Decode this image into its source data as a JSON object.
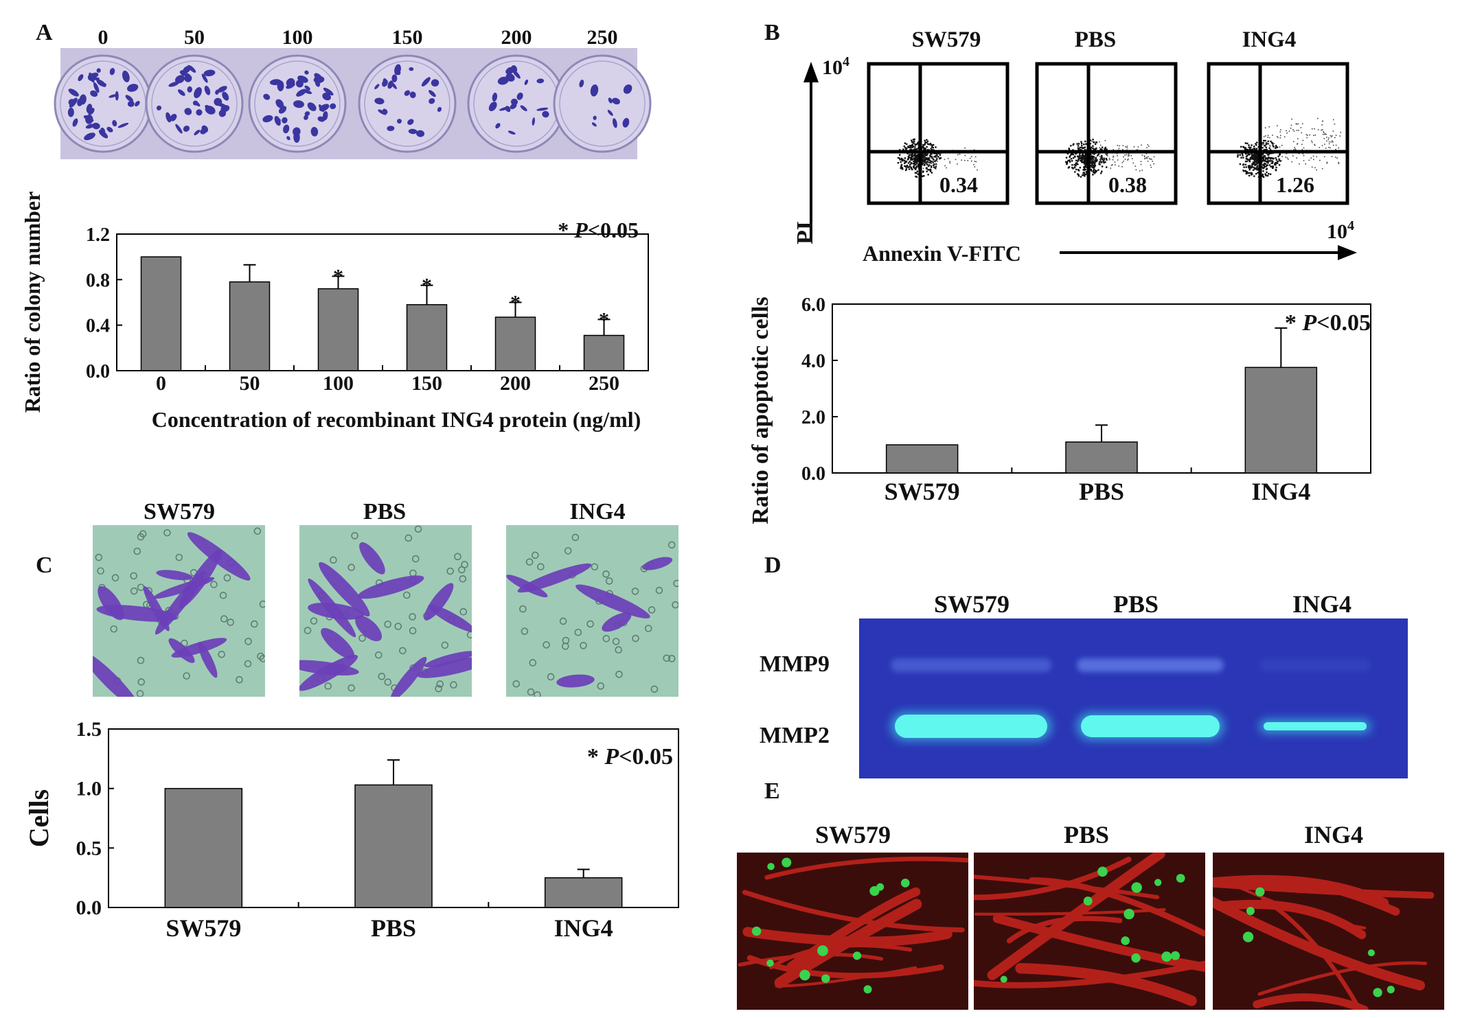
{
  "panels": {
    "A": "A",
    "B": "B",
    "C": "C",
    "D": "D",
    "E": "E"
  },
  "colors": {
    "bar": "#7f7f7f",
    "plate": "#c9c3df",
    "colony": "#3b35a0",
    "gel": "#2a36b5",
    "band": "#3ff2f2",
    "vessel": "#b3201a",
    "vessel_bg": "#3a0d0b",
    "cell_dot": "#39d34d",
    "micro_bg": "#9fcbb6",
    "micro_cell": "#6b3fb8"
  },
  "photoA": {
    "well_labels": [
      "0",
      "50",
      "100",
      "150",
      "200",
      "250"
    ]
  },
  "flowB": {
    "titles": [
      "SW579",
      "PBS",
      "ING4"
    ],
    "values": [
      "0.34",
      "0.38",
      "1.26"
    ],
    "y_axis": "PI",
    "x_axis": "Annexin V-FITC",
    "axis_max_label": "10",
    "axis_max_exp": "4"
  },
  "photoC": {
    "labels": [
      "SW579",
      "PBS",
      "ING4"
    ]
  },
  "gelD": {
    "lanes": [
      "SW579",
      "PBS",
      "ING4"
    ],
    "rows": [
      "MMP9",
      "MMP2"
    ]
  },
  "photoE": {
    "labels": [
      "SW579",
      "PBS",
      "ING4"
    ]
  },
  "chart_data": [
    {
      "id": "A",
      "type": "bar",
      "categories": [
        "0",
        "50",
        "100",
        "150",
        "200",
        "250"
      ],
      "values": [
        1.0,
        0.78,
        0.72,
        0.58,
        0.47,
        0.31
      ],
      "errors": [
        0,
        0.15,
        0.11,
        0.17,
        0.13,
        0.14
      ],
      "significant": [
        false,
        false,
        true,
        true,
        true,
        true
      ],
      "xlabel": "Concentration of recombinant ING4 protein (ng/ml)",
      "ylabel": "Ratio of colony number",
      "ylim": [
        0,
        1.2
      ],
      "yticks": [
        "0.0",
        "0.4",
        "0.8",
        "1.2"
      ],
      "annotation": {
        "star": "*",
        "p": "P",
        "rest": "<0.05"
      }
    },
    {
      "id": "B",
      "type": "bar",
      "categories": [
        "SW579",
        "PBS",
        "ING4"
      ],
      "values": [
        1.0,
        1.1,
        3.75
      ],
      "errors": [
        0,
        0.6,
        1.4
      ],
      "significant": [
        false,
        false,
        true
      ],
      "xlabel": "",
      "ylabel": "Ratio of apoptotic cells",
      "ylim": [
        0,
        6
      ],
      "yticks": [
        "0.0",
        "2.0",
        "4.0",
        "6.0"
      ],
      "annotation": {
        "star": "*",
        "p": "P",
        "rest": "<0.05"
      }
    },
    {
      "id": "C",
      "type": "bar",
      "categories": [
        "SW579",
        "PBS",
        "ING4"
      ],
      "values": [
        1.0,
        1.03,
        0.25
      ],
      "errors": [
        0,
        0.21,
        0.07
      ],
      "significant": [
        false,
        false,
        false
      ],
      "xlabel": "",
      "ylabel": "Cells",
      "ylim": [
        0,
        1.5
      ],
      "yticks": [
        "0.0",
        "0.5",
        "1.0",
        "1.5"
      ],
      "annotation": {
        "star": "*",
        "p": "P",
        "rest": "<0.05"
      }
    }
  ]
}
